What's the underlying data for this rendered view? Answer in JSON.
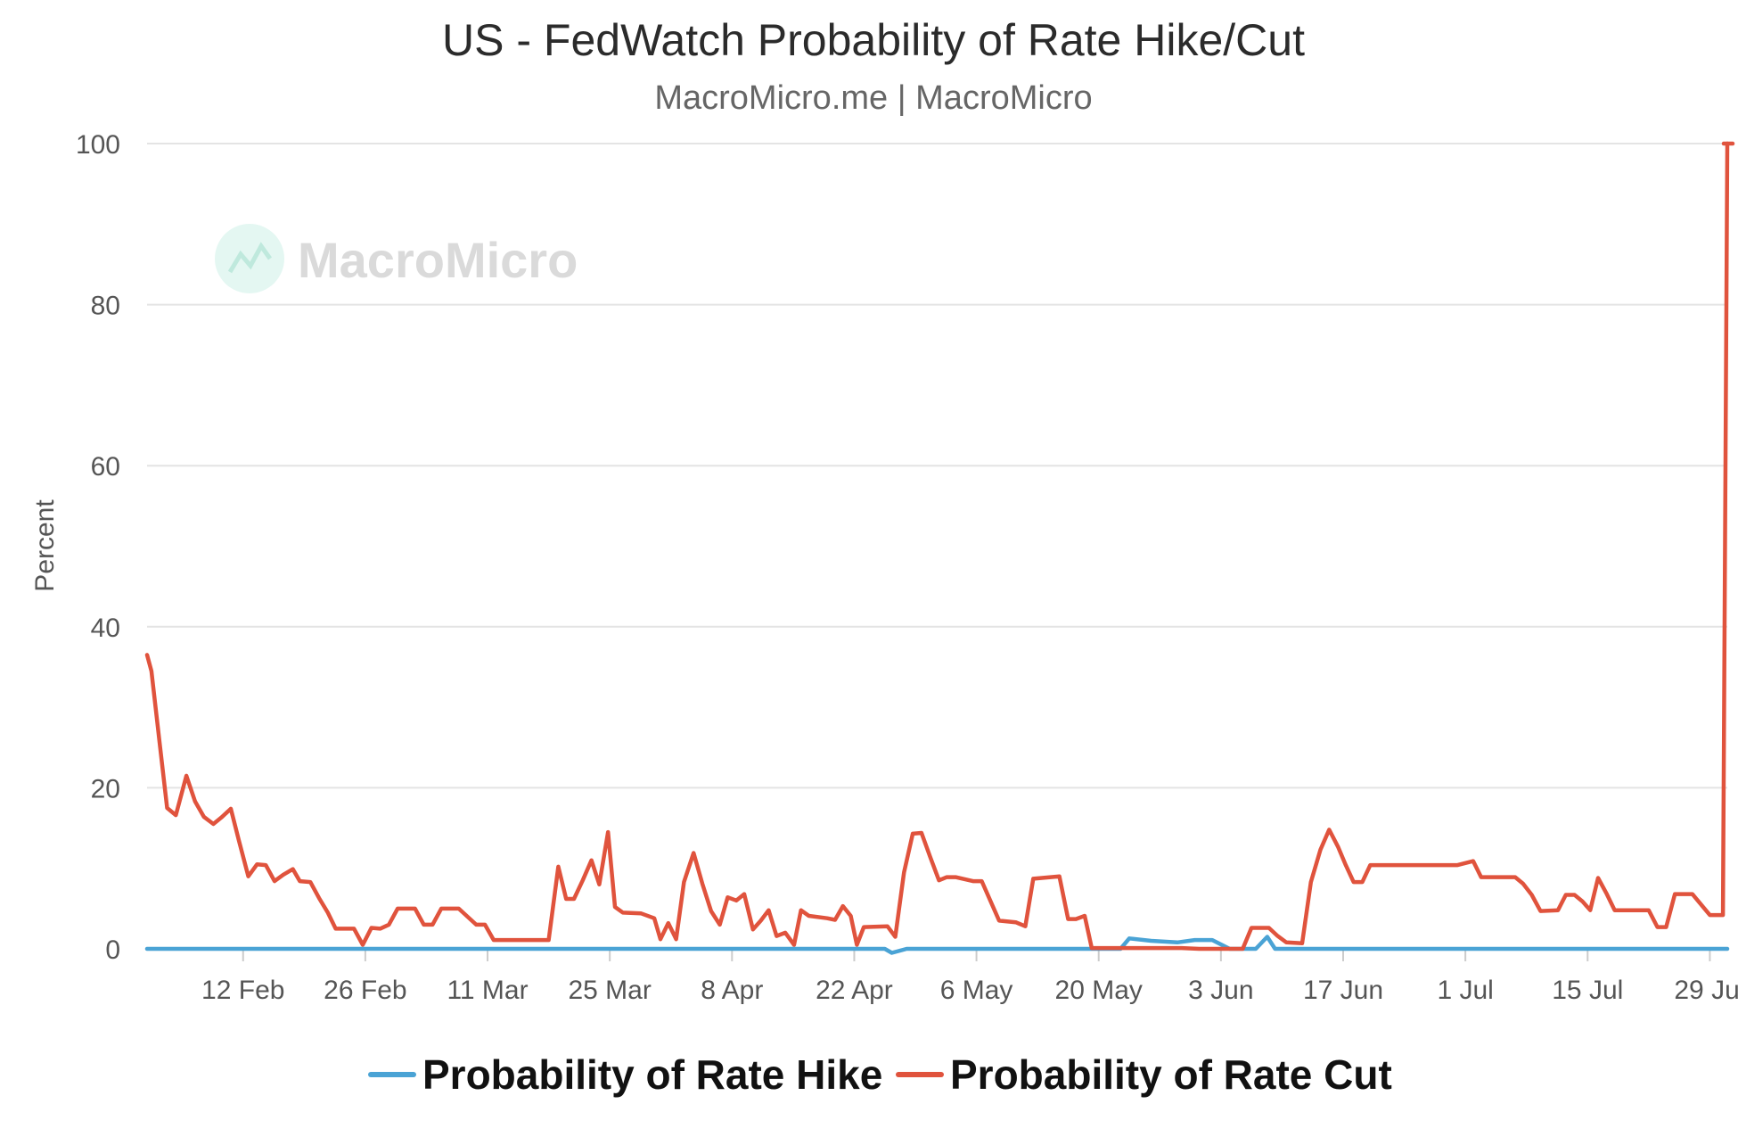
{
  "chart_data": {
    "type": "line",
    "title": "US - FedWatch Probability of Rate Hike/Cut",
    "subtitle": "MacroMicro.me | MacroMicro",
    "watermark": "MacroMicro",
    "ylabel": "Percent",
    "xlabel": "",
    "ylim": [
      0,
      100
    ],
    "yticks": [
      0,
      20,
      40,
      60,
      80,
      100
    ],
    "x_range_days": [
      0,
      181
    ],
    "xticks": [
      {
        "label": "12 Feb",
        "day": 11
      },
      {
        "label": "26 Feb",
        "day": 25
      },
      {
        "label": "11 Mar",
        "day": 39
      },
      {
        "label": "25 Mar",
        "day": 53
      },
      {
        "label": "8 Apr",
        "day": 67
      },
      {
        "label": "22 Apr",
        "day": 81
      },
      {
        "label": "6 May",
        "day": 95
      },
      {
        "label": "20 May",
        "day": 109
      },
      {
        "label": "3 Jun",
        "day": 123
      },
      {
        "label": "17 Jun",
        "day": 137
      },
      {
        "label": "1 Jul",
        "day": 151
      },
      {
        "label": "15 Jul",
        "day": 165
      },
      {
        "label": "29 Jul",
        "day": 179
      }
    ],
    "legend_position": "bottom-center",
    "series": [
      {
        "name": "Probability of Rate Hike",
        "color": "#4aa3d5",
        "points": [
          [
            0,
            0
          ],
          [
            84.5,
            0
          ],
          [
            85.3,
            -0.5
          ],
          [
            87,
            0
          ],
          [
            111.5,
            0
          ],
          [
            112.5,
            1.3
          ],
          [
            115,
            1
          ],
          [
            118,
            0.8
          ],
          [
            120,
            1.1
          ],
          [
            122,
            1.1
          ],
          [
            124,
            0
          ],
          [
            127,
            0
          ],
          [
            128.3,
            1.5
          ],
          [
            129.2,
            0
          ],
          [
            181,
            0
          ]
        ]
      },
      {
        "name": "Probability of Rate Cut",
        "color": "#e0533d",
        "points": [
          [
            0,
            36.5
          ],
          [
            0.5,
            34.5
          ],
          [
            1.5,
            25
          ],
          [
            2.3,
            17.5
          ],
          [
            3.3,
            16.6
          ],
          [
            4.5,
            21.5
          ],
          [
            5.5,
            18.3
          ],
          [
            6.5,
            16.4
          ],
          [
            7.6,
            15.5
          ],
          [
            8.5,
            16.3
          ],
          [
            9.6,
            17.4
          ],
          [
            10.5,
            13.5
          ],
          [
            11.6,
            9
          ],
          [
            12.6,
            10.5
          ],
          [
            13.6,
            10.4
          ],
          [
            14.6,
            8.4
          ],
          [
            15.6,
            9.2
          ],
          [
            16.7,
            9.9
          ],
          [
            17.5,
            8.4
          ],
          [
            18.7,
            8.3
          ],
          [
            19.7,
            6.3
          ],
          [
            20.7,
            4.5
          ],
          [
            21.6,
            2.5
          ],
          [
            23.7,
            2.5
          ],
          [
            24.7,
            0.5
          ],
          [
            25.7,
            2.6
          ],
          [
            26.7,
            2.5
          ],
          [
            27.7,
            3
          ],
          [
            28.7,
            5
          ],
          [
            30.7,
            5
          ],
          [
            31.7,
            3
          ],
          [
            32.7,
            3
          ],
          [
            33.7,
            5
          ],
          [
            35.7,
            5
          ],
          [
            37.7,
            3
          ],
          [
            38.7,
            3
          ],
          [
            39.7,
            1.1
          ],
          [
            46,
            1.1
          ],
          [
            47.1,
            10.2
          ],
          [
            48,
            6.2
          ],
          [
            48.9,
            6.2
          ],
          [
            49.9,
            8.5
          ],
          [
            50.9,
            11
          ],
          [
            51.8,
            8
          ],
          [
            52.8,
            14.5
          ],
          [
            53.6,
            5.2
          ],
          [
            54.5,
            4.5
          ],
          [
            56.6,
            4.4
          ],
          [
            58.1,
            3.8
          ],
          [
            58.8,
            1.2
          ],
          [
            59.7,
            3.2
          ],
          [
            60.6,
            1.2
          ],
          [
            61.5,
            8.3
          ],
          [
            62.6,
            11.9
          ],
          [
            63.6,
            8.1
          ],
          [
            64.6,
            4.7
          ],
          [
            65.6,
            3
          ],
          [
            66.5,
            6.4
          ],
          [
            67.5,
            6
          ],
          [
            68.4,
            6.8
          ],
          [
            69.4,
            2.4
          ],
          [
            70.3,
            3.5
          ],
          [
            71.2,
            4.8
          ],
          [
            72.1,
            1.6
          ],
          [
            73.1,
            2
          ],
          [
            74.1,
            0.5
          ],
          [
            74.9,
            4.8
          ],
          [
            75.8,
            4.1
          ],
          [
            77.9,
            3.8
          ],
          [
            78.8,
            3.6
          ],
          [
            79.7,
            5.3
          ],
          [
            80.6,
            4.1
          ],
          [
            81.3,
            0.5
          ],
          [
            82.1,
            2.7
          ],
          [
            84.8,
            2.8
          ],
          [
            85.7,
            1.5
          ],
          [
            86.7,
            9.5
          ],
          [
            87.7,
            14.3
          ],
          [
            88.7,
            14.4
          ],
          [
            89.7,
            11.4
          ],
          [
            90.7,
            8.5
          ],
          [
            91.6,
            8.9
          ],
          [
            92.6,
            8.9
          ],
          [
            94.6,
            8.4
          ],
          [
            95.6,
            8.4
          ],
          [
            97.6,
            3.5
          ],
          [
            99.5,
            3.3
          ],
          [
            100.6,
            2.8
          ],
          [
            101.5,
            8.7
          ],
          [
            104.5,
            9
          ],
          [
            105.5,
            3.7
          ],
          [
            106.4,
            3.7
          ],
          [
            107.4,
            4.1
          ],
          [
            108.2,
            0.1
          ],
          [
            115.5,
            0.1
          ],
          [
            118.5,
            0.1
          ],
          [
            120.5,
            0
          ],
          [
            122.5,
            0
          ],
          [
            124.5,
            0
          ],
          [
            125.5,
            0
          ],
          [
            126.5,
            2.6
          ],
          [
            128.5,
            2.6
          ],
          [
            129.5,
            1.6
          ],
          [
            130.5,
            0.8
          ],
          [
            132.3,
            0.7
          ],
          [
            133.3,
            8.3
          ],
          [
            134.4,
            12.3
          ],
          [
            135.4,
            14.8
          ],
          [
            136.4,
            12.7
          ],
          [
            137.3,
            10.4
          ],
          [
            138.2,
            8.3
          ],
          [
            139.2,
            8.3
          ],
          [
            140.1,
            10.4
          ],
          [
            150.1,
            10.4
          ],
          [
            151.9,
            10.9
          ],
          [
            152.8,
            8.9
          ],
          [
            156.7,
            8.9
          ],
          [
            157.6,
            8.1
          ],
          [
            158.6,
            6.7
          ],
          [
            159.6,
            4.7
          ],
          [
            161.6,
            4.8
          ],
          [
            162.5,
            6.7
          ],
          [
            163.5,
            6.7
          ],
          [
            164.4,
            5.9
          ],
          [
            165.3,
            4.8
          ],
          [
            166.2,
            8.8
          ],
          [
            167.2,
            6.8
          ],
          [
            168.1,
            4.8
          ],
          [
            172,
            4.8
          ],
          [
            173,
            2.7
          ],
          [
            174,
            2.7
          ],
          [
            175,
            6.8
          ],
          [
            177,
            6.8
          ],
          [
            179,
            4.2
          ],
          [
            180.5,
            4.2
          ],
          [
            181,
            100
          ]
        ]
      }
    ]
  }
}
